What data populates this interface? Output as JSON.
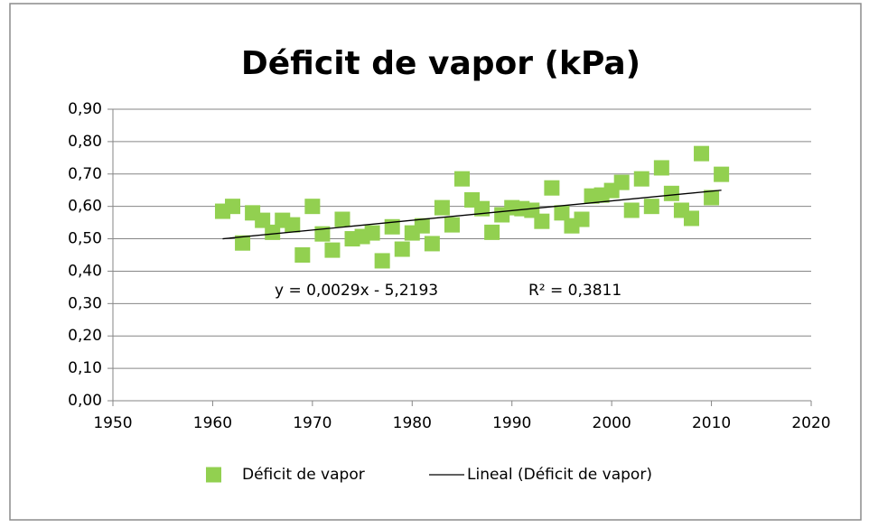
{
  "chart_data": {
    "type": "scatter",
    "title": "Déficit de vapor (kPa)",
    "series": [
      {
        "name": "Déficit de vapor",
        "color": "#92d050",
        "x": [
          1961,
          1962,
          1963,
          1964,
          1965,
          1966,
          1967,
          1968,
          1969,
          1970,
          1971,
          1972,
          1973,
          1974,
          1975,
          1976,
          1977,
          1978,
          1979,
          1980,
          1981,
          1982,
          1983,
          1984,
          1985,
          1986,
          1987,
          1988,
          1989,
          1990,
          1991,
          1992,
          1993,
          1994,
          1995,
          1996,
          1997,
          1998,
          1999,
          2000,
          2001,
          2002,
          2003,
          2004,
          2005,
          2006,
          2007,
          2008,
          2009,
          2010,
          2011
        ],
        "values": [
          0.585,
          0.6,
          0.487,
          0.58,
          0.557,
          0.52,
          0.557,
          0.543,
          0.45,
          0.6,
          0.515,
          0.465,
          0.56,
          0.5,
          0.507,
          0.518,
          0.432,
          0.537,
          0.468,
          0.518,
          0.54,
          0.485,
          0.596,
          0.543,
          0.685,
          0.62,
          0.593,
          0.52,
          0.574,
          0.596,
          0.593,
          0.588,
          0.554,
          0.657,
          0.58,
          0.54,
          0.56,
          0.632,
          0.635,
          0.649,
          0.674,
          0.588,
          0.685,
          0.6,
          0.719,
          0.64,
          0.588,
          0.563,
          0.763,
          0.627,
          0.699
        ]
      },
      {
        "name": "Lineal (Déficit de vapor)",
        "color": "#000000",
        "x": [
          1961,
          2011
        ],
        "values": [
          0.5,
          0.65
        ]
      }
    ],
    "annotations": [
      "y = 0,0029x - 5,2193",
      "R² = 0,3811"
    ],
    "xlim": [
      1950,
      2020
    ],
    "xticks": [
      1950,
      1960,
      1970,
      1980,
      1990,
      2000,
      2010,
      2020
    ],
    "ylim": [
      0,
      0.9
    ],
    "yticks": [
      {
        "value": 0,
        "label": "0,00"
      },
      {
        "value": 0.1,
        "label": "0,10"
      },
      {
        "value": 0.2,
        "label": "0,20"
      },
      {
        "value": 0.3,
        "label": "0,30"
      },
      {
        "value": 0.4,
        "label": "0,40"
      },
      {
        "value": 0.5,
        "label": "0,50"
      },
      {
        "value": 0.6,
        "label": "0,60"
      },
      {
        "value": 0.7,
        "label": "0,70"
      },
      {
        "value": 0.8,
        "label": "0,80"
      },
      {
        "value": 0.9,
        "label": "0,90"
      }
    ],
    "grid": true,
    "legend": "bottom"
  }
}
